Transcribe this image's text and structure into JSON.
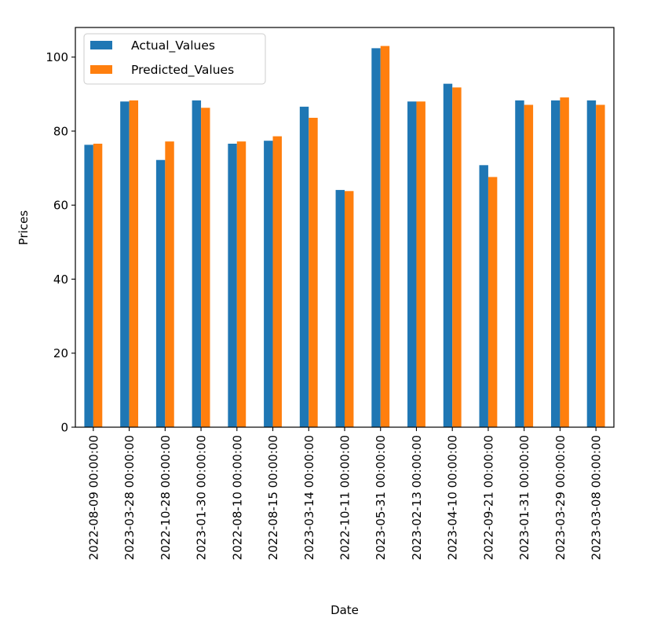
{
  "chart_data": {
    "type": "bar",
    "xlabel": "Date",
    "ylabel": "Prices",
    "ylim": [
      0,
      108
    ],
    "yticks": [
      0,
      20,
      40,
      60,
      80,
      100
    ],
    "categories": [
      "2022-08-09 00:00:00",
      "2023-03-28 00:00:00",
      "2022-10-28 00:00:00",
      "2023-01-30 00:00:00",
      "2022-08-10 00:00:00",
      "2022-08-15 00:00:00",
      "2023-03-14 00:00:00",
      "2022-10-11 00:00:00",
      "2023-05-31 00:00:00",
      "2023-02-13 00:00:00",
      "2023-04-10 00:00:00",
      "2022-09-21 00:00:00",
      "2023-01-31 00:00:00",
      "2023-03-29 00:00:00",
      "2023-03-08 00:00:00"
    ],
    "series": [
      {
        "name": "Actual_Values",
        "color": "#1f77b4",
        "values": [
          76.3,
          88.0,
          72.2,
          88.3,
          76.6,
          77.4,
          86.6,
          64.1,
          102.4,
          88.0,
          92.8,
          70.8,
          88.3,
          88.3,
          88.3
        ]
      },
      {
        "name": "Predicted_Values",
        "color": "#ff7f0e",
        "values": [
          76.6,
          88.3,
          77.2,
          86.3,
          77.2,
          78.6,
          83.6,
          63.8,
          103.0,
          88.0,
          91.8,
          67.6,
          87.1,
          89.1,
          87.1
        ]
      }
    ],
    "legend": {
      "position": "top-left"
    },
    "grid": false
  }
}
